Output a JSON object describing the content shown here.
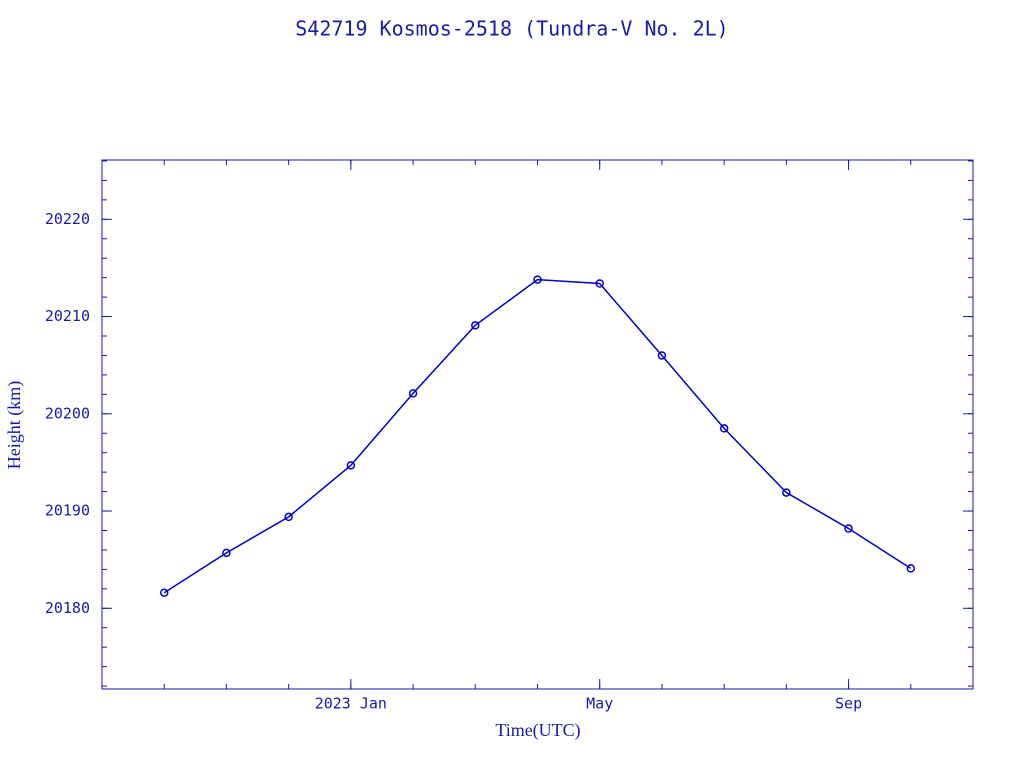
{
  "chart_data": {
    "type": "line",
    "title": "S42719 Kosmos-2518  (Tundra-V No. 2L)",
    "x_label": "Time(UTC)",
    "y_label": "Height (km)",
    "x": [
      "2022-10",
      "2022-11",
      "2022-12",
      "2023-01",
      "2023-02",
      "2023-03",
      "2023-04",
      "2023-05",
      "2023-06",
      "2023-07",
      "2023-08",
      "2023-09",
      "2023-10"
    ],
    "values": [
      20181.6,
      20185.7,
      20189.4,
      20194.7,
      20202.1,
      20209.1,
      20213.8,
      20213.4,
      20206.0,
      20198.5,
      20191.9,
      20188.2,
      20184.1
    ],
    "color": "#0000cc",
    "xlim": [
      "2022-09",
      "2023-11"
    ],
    "xticks": [
      {
        "value": "2023-01",
        "label": "2023 Jan"
      },
      {
        "value": "2023-05",
        "label": "May"
      },
      {
        "value": "2023-09",
        "label": "Sep"
      }
    ],
    "ylim": [
      20171.7,
      20226.1
    ],
    "yticks": [
      20180,
      20190,
      20200,
      20210,
      20220
    ]
  }
}
